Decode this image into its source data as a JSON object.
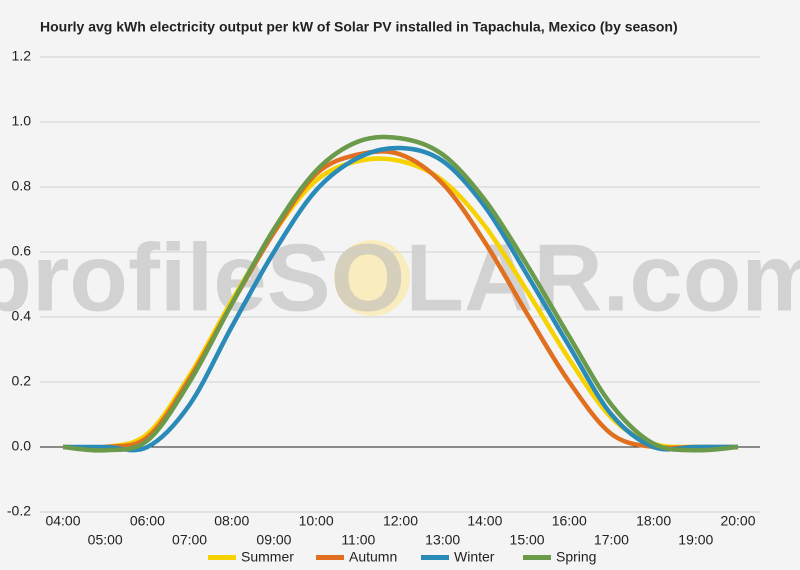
{
  "chart_data": {
    "type": "line",
    "title": "Hourly avg kWh electricity output per kW of Solar PV installed in Tapachula, Mexico (by season)",
    "watermark": "profileSOLAR.com",
    "categories": [
      "04:00",
      "05:00",
      "06:00",
      "07:00",
      "08:00",
      "09:00",
      "10:00",
      "11:00",
      "12:00",
      "13:00",
      "14:00",
      "15:00",
      "16:00",
      "17:00",
      "18:00",
      "19:00",
      "20:00"
    ],
    "series": [
      {
        "name": "Summer",
        "color": "#f5d200",
        "values": [
          0,
          0,
          0.04,
          0.22,
          0.45,
          0.66,
          0.82,
          0.88,
          0.88,
          0.82,
          0.68,
          0.48,
          0.27,
          0.09,
          0.01,
          0,
          0
        ]
      },
      {
        "name": "Autumn",
        "color": "#e07020",
        "values": [
          0,
          0,
          0.03,
          0.21,
          0.44,
          0.66,
          0.84,
          0.9,
          0.9,
          0.81,
          0.63,
          0.41,
          0.2,
          0.04,
          0,
          0,
          0
        ]
      },
      {
        "name": "Winter",
        "color": "#2a8ab8",
        "values": [
          0,
          0,
          0,
          0.13,
          0.37,
          0.6,
          0.79,
          0.89,
          0.92,
          0.88,
          0.74,
          0.53,
          0.31,
          0.1,
          0,
          0,
          0
        ]
      },
      {
        "name": "Spring",
        "color": "#6a9a4a",
        "values": [
          0,
          -0.01,
          0.02,
          0.2,
          0.44,
          0.67,
          0.85,
          0.94,
          0.95,
          0.9,
          0.76,
          0.56,
          0.34,
          0.13,
          0.01,
          -0.01,
          0
        ]
      }
    ],
    "ylim": [
      -0.2,
      1.2
    ],
    "yticks": [
      -0.2,
      {
        "value": 0,
        "label": "0.0"
      },
      0.2,
      0.4,
      0.6,
      0.8,
      {
        "value": 1,
        "label": "1.0"
      },
      1.2
    ],
    "grid": true
  }
}
